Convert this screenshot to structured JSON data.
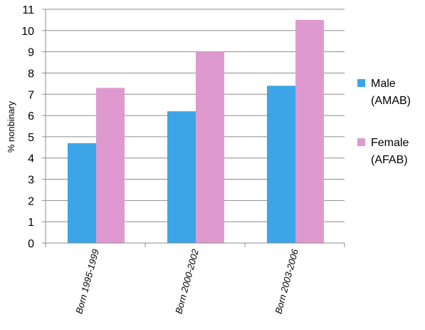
{
  "chart_data": {
    "type": "bar",
    "title": "",
    "xlabel": "",
    "ylabel": "% nonbinary",
    "ylim": [
      0,
      11
    ],
    "yticks": [
      0,
      1,
      2,
      3,
      4,
      5,
      6,
      7,
      8,
      9,
      10,
      11
    ],
    "grid": true,
    "legend_position": "right",
    "categories": [
      "Born 1995-1999",
      "Born 2000-2002",
      "Born 2003-2006"
    ],
    "series": [
      {
        "name_lines": [
          "Male",
          "(AMAB)"
        ],
        "color": "#3BA5E8",
        "values": [
          4.7,
          6.2,
          7.4
        ]
      },
      {
        "name_lines": [
          "Female",
          "(AFAB)"
        ],
        "color": "#DE9ACF",
        "values": [
          7.3,
          9.0,
          10.5
        ]
      }
    ]
  }
}
